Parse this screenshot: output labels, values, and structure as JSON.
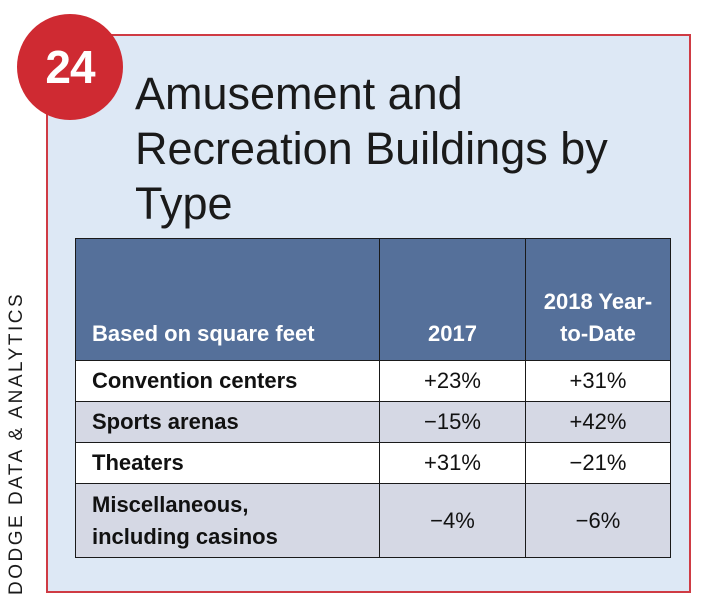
{
  "badge": "24",
  "title": "Amusement and Recreation Buildings by Type",
  "side_label": "DODGE DATA & ANALYTICS",
  "table": {
    "headers": [
      "Based on square feet",
      "2017",
      "2018 Year-to-Date"
    ],
    "rows": [
      {
        "label": "Convention centers",
        "v2017": "+23%",
        "v2018": "+31%"
      },
      {
        "label": "Sports arenas",
        "v2017": "−15%",
        "v2018": "+42%"
      },
      {
        "label": "Theaters",
        "v2017": "+31%",
        "v2018": "−21%"
      },
      {
        "label": "Miscellaneous, including casinos",
        "v2017": "−4%",
        "v2018": "−6%"
      }
    ]
  },
  "colors": {
    "badge": "#cf2a32",
    "border": "#cf3b44",
    "panel": "#dde8f5",
    "header": "#55709a",
    "row_tint": "#d5d8e4"
  }
}
